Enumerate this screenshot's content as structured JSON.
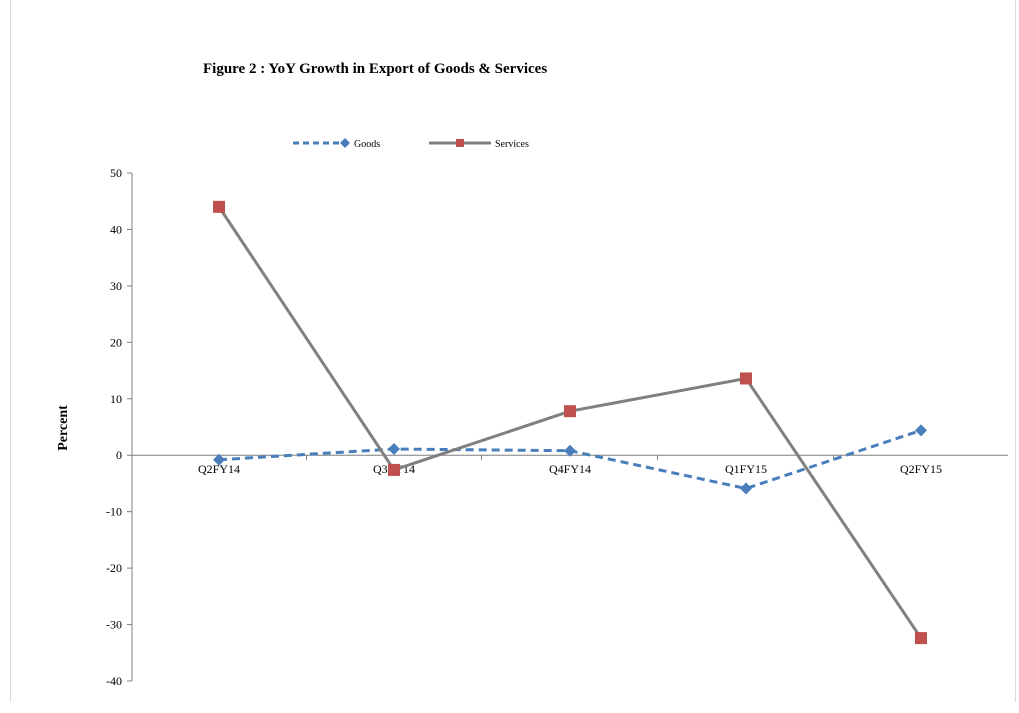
{
  "chart_data": {
    "type": "line",
    "title": "Figure 2 : YoY Growth in Export  of Goods & Services",
    "xlabel": "",
    "ylabel": "Percent",
    "categories": [
      "Q2FY14",
      "Q3FY14",
      "Q4FY14",
      "Q1FY15",
      "Q2FY15"
    ],
    "ylim": [
      -40,
      50
    ],
    "yticks": [
      50,
      40,
      30,
      20,
      10,
      0,
      -10,
      -20,
      -30,
      -40
    ],
    "grid": false,
    "legend_position": "top",
    "series": [
      {
        "name": "Goods",
        "values": [
          -0.8,
          1.1,
          0.8,
          -5.9,
          4.4
        ],
        "color": "#4a7ebb",
        "dash": "dashed",
        "marker": "diamond"
      },
      {
        "name": "Services",
        "values": [
          44.0,
          -2.6,
          7.8,
          13.6,
          -32.4
        ],
        "color": "#808080",
        "dash": "solid",
        "marker": "square",
        "marker_color": "#c0504d"
      }
    ]
  }
}
